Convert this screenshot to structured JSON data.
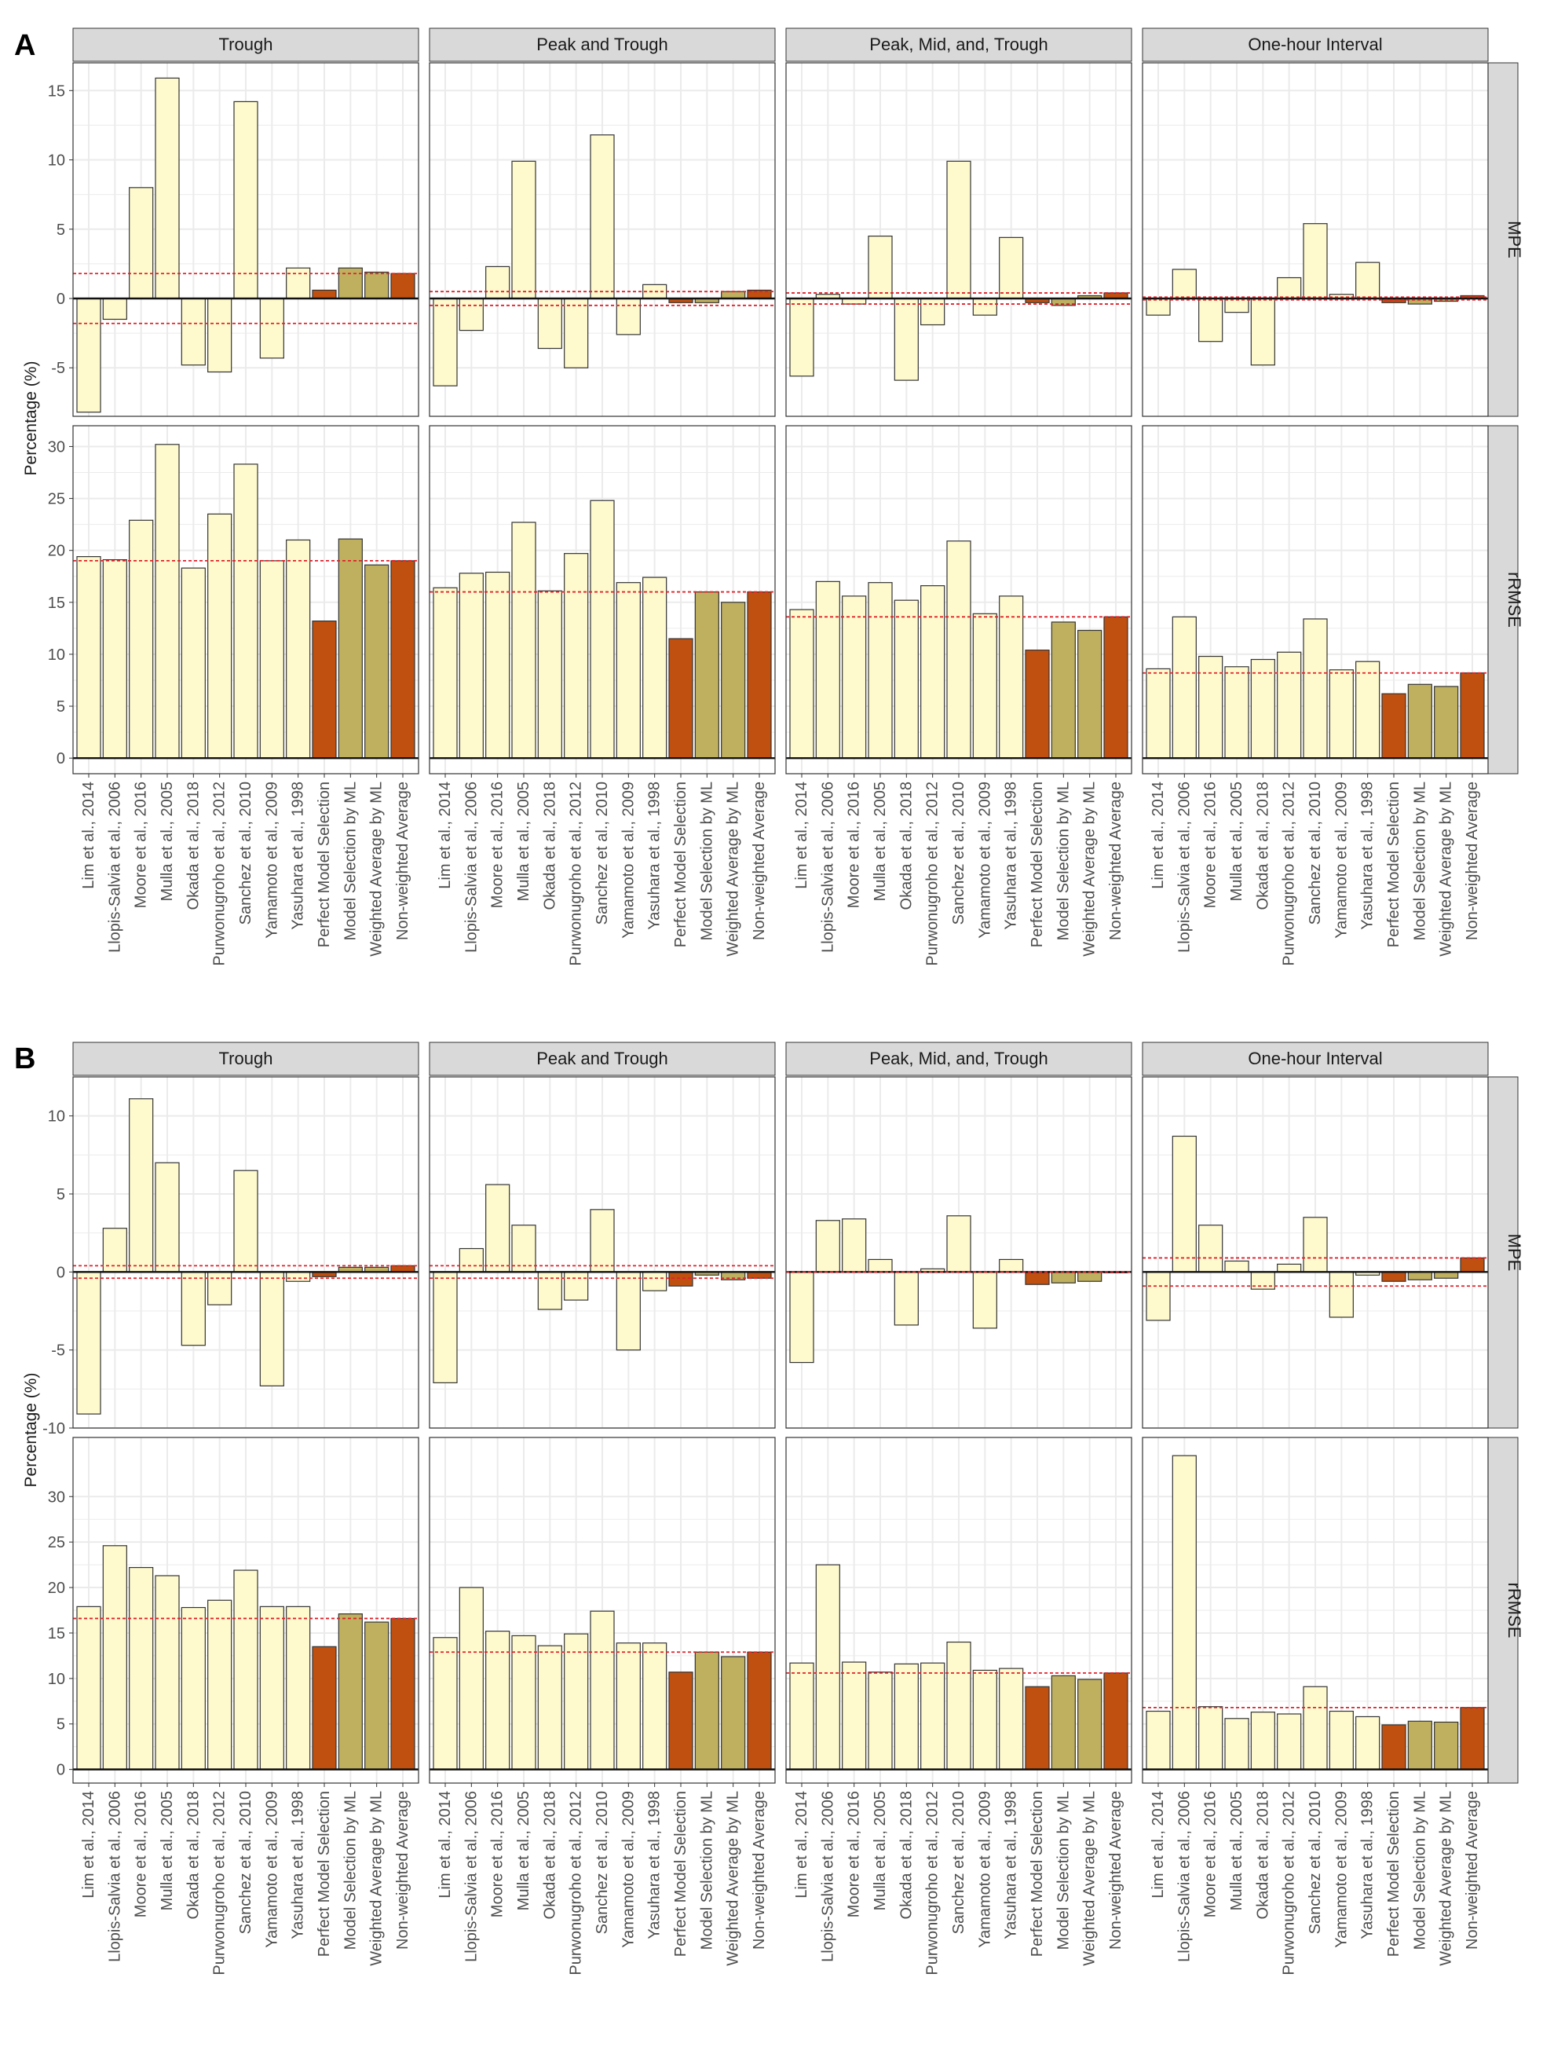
{
  "colors": {
    "individual": "#FFFACD",
    "perfect": "#C05010",
    "ml": "#BFB060",
    "nonweighted": "#C05010",
    "refline": "#E0202A",
    "strip": "#D9D9D9",
    "grid": "#EBEBEB"
  },
  "categories": [
    "Lim et al., 2014",
    "Llopis-Salvia et al., 2006",
    "Moore et al., 2016",
    "Mulla et al., 2005",
    "Okada et al., 2018",
    "Purwonugroho et al., 2012",
    "Sanchez et al., 2010",
    "Yamamoto et al., 2009",
    "Yasuhara et al., 1998",
    "Perfect Model Selection",
    "Model Selection by ML",
    "Weighted Average by ML",
    "Non-weighted Average"
  ],
  "bar_kinds": [
    "individual",
    "individual",
    "individual",
    "individual",
    "individual",
    "individual",
    "individual",
    "individual",
    "individual",
    "perfect",
    "ml",
    "ml",
    "nonweighted"
  ],
  "chart_data": [
    {
      "type": "bar",
      "panel_label": "A",
      "ylabel": "Percentage (%)",
      "row_strips": [
        "MPE",
        "rRMSE"
      ],
      "col_strips": [
        "Trough",
        "Peak and Trough",
        "Peak, Mid, and, Trough",
        "One-hour Interval"
      ],
      "rows": [
        {
          "metric": "MPE",
          "ylim": [
            -8.5,
            17
          ],
          "ticks": [
            -5,
            0,
            5,
            10,
            15
          ],
          "panels": [
            {
              "values": [
                -8.2,
                -1.5,
                8.0,
                15.9,
                -4.8,
                -5.3,
                14.2,
                -4.3,
                2.2,
                0.6,
                2.2,
                1.9,
                1.8
              ],
              "refline": [
                1.8,
                -1.8
              ]
            },
            {
              "values": [
                -6.3,
                -2.3,
                2.3,
                9.9,
                -3.6,
                -5.0,
                11.8,
                -2.6,
                1.0,
                -0.3,
                -0.3,
                0.5,
                0.6
              ],
              "refline": [
                0.5,
                -0.5
              ]
            },
            {
              "values": [
                -5.6,
                0.3,
                -0.4,
                4.5,
                -5.9,
                -1.9,
                9.9,
                -1.2,
                4.4,
                -0.3,
                -0.5,
                0.2,
                0.4
              ],
              "refline": [
                0.4,
                -0.4
              ]
            },
            {
              "values": [
                -1.2,
                2.1,
                -3.1,
                -1.0,
                -4.8,
                1.5,
                5.4,
                0.3,
                2.6,
                -0.3,
                -0.4,
                -0.2,
                0.2
              ],
              "refline": [
                0.1,
                -0.1
              ]
            }
          ]
        },
        {
          "metric": "rRMSE",
          "ylim": [
            -1.5,
            32
          ],
          "ticks": [
            0,
            5,
            10,
            15,
            20,
            25,
            30
          ],
          "panels": [
            {
              "values": [
                19.4,
                19.1,
                22.9,
                30.2,
                18.3,
                23.5,
                28.3,
                19.0,
                21.0,
                13.2,
                21.1,
                18.6,
                19.0
              ],
              "refline": [
                19.0
              ]
            },
            {
              "values": [
                16.4,
                17.8,
                17.9,
                22.7,
                16.1,
                19.7,
                24.8,
                16.9,
                17.4,
                11.5,
                16.0,
                15.0,
                16.0
              ],
              "refline": [
                16.0
              ]
            },
            {
              "values": [
                14.3,
                17.0,
                15.6,
                16.9,
                15.2,
                16.6,
                20.9,
                13.9,
                15.6,
                10.4,
                13.1,
                12.3,
                13.6
              ],
              "refline": [
                13.6
              ]
            },
            {
              "values": [
                8.6,
                13.6,
                9.8,
                8.8,
                9.5,
                10.2,
                13.4,
                8.5,
                9.3,
                6.2,
                7.1,
                6.9,
                8.2
              ],
              "refline": [
                8.2
              ]
            }
          ]
        }
      ]
    },
    {
      "type": "bar",
      "panel_label": "B",
      "ylabel": "Percentage (%)",
      "row_strips": [
        "MPE",
        "rRMSE"
      ],
      "col_strips": [
        "Trough",
        "Peak and Trough",
        "Peak, Mid, and, Trough",
        "One-hour Interval"
      ],
      "rows": [
        {
          "metric": "MPE",
          "ylim": [
            -10,
            12.5
          ],
          "ticks": [
            -10,
            -5,
            0,
            5,
            10
          ],
          "panels": [
            {
              "values": [
                -9.1,
                2.8,
                11.1,
                7.0,
                -4.7,
                -2.1,
                6.5,
                -7.3,
                -0.6,
                -0.3,
                0.3,
                0.3,
                0.4
              ],
              "refline": [
                0.4,
                -0.4
              ]
            },
            {
              "values": [
                -7.1,
                1.5,
                5.6,
                3.0,
                -2.4,
                -1.8,
                4.0,
                -5.0,
                -1.2,
                -0.9,
                -0.2,
                -0.5,
                -0.4
              ],
              "refline": [
                0.4,
                -0.4
              ]
            },
            {
              "values": [
                -5.8,
                3.3,
                3.4,
                0.8,
                -3.4,
                0.2,
                3.6,
                -3.6,
                0.8,
                -0.8,
                -0.7,
                -0.6,
                0.0
              ],
              "refline": [
                0.0
              ]
            },
            {
              "values": [
                -3.1,
                8.7,
                3.0,
                0.7,
                -1.1,
                0.5,
                3.5,
                -2.9,
                -0.2,
                -0.6,
                -0.5,
                -0.4,
                0.9
              ],
              "refline": [
                0.9,
                -0.9
              ]
            }
          ]
        },
        {
          "metric": "rRMSE",
          "ylim": [
            -1.5,
            36.5
          ],
          "ticks": [
            0,
            5,
            10,
            15,
            20,
            25,
            30
          ],
          "panels": [
            {
              "values": [
                17.9,
                24.6,
                22.2,
                21.3,
                17.8,
                18.6,
                21.9,
                17.9,
                17.9,
                13.5,
                17.1,
                16.2,
                16.6
              ],
              "refline": [
                16.6
              ]
            },
            {
              "values": [
                14.5,
                20.0,
                15.2,
                14.7,
                13.6,
                14.9,
                17.4,
                13.9,
                13.9,
                10.7,
                12.9,
                12.4,
                12.9
              ],
              "refline": [
                12.9
              ]
            },
            {
              "values": [
                11.7,
                22.5,
                11.8,
                10.7,
                11.6,
                11.7,
                14.0,
                10.9,
                11.1,
                9.1,
                10.3,
                9.9,
                10.6
              ],
              "refline": [
                10.6
              ]
            },
            {
              "values": [
                6.4,
                34.5,
                6.9,
                5.6,
                6.3,
                6.1,
                9.1,
                6.4,
                5.8,
                4.9,
                5.3,
                5.2,
                6.8
              ],
              "refline": [
                6.8
              ]
            }
          ]
        }
      ]
    }
  ]
}
